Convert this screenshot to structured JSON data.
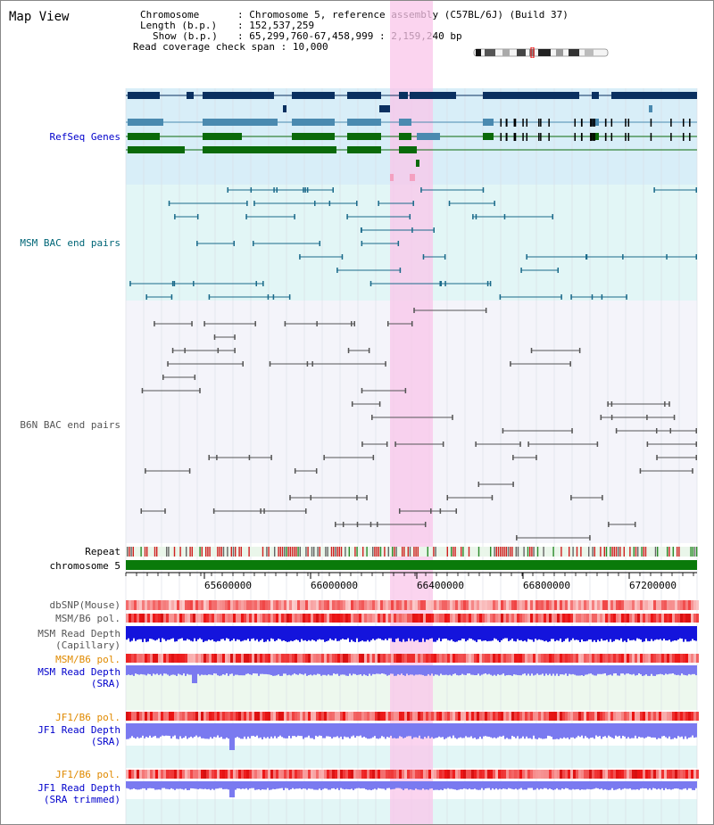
{
  "header": {
    "title": "Map View",
    "chromosome_key": "Chromosome",
    "chromosome_value": "Chromosome 5, reference assembly (C57BL/6J) (Build 37)",
    "length_key": "Length (b.p.)",
    "length_value": "152,537,259",
    "show_key": "Show (b.p.)",
    "show_value": "65,299,760-67,458,999 : 2,159,240 bp",
    "coverage_key": "Read coverage check span",
    "coverage_value": "10,000"
  },
  "tracks": {
    "refseq": "RefSeq Genes",
    "msm_bac": "MSM BAC end pairs",
    "b6n_bac": "B6N BAC end pairs",
    "repeat": "Repeat",
    "chromosome": "chromosome 5",
    "dbsnp": "dbSNP(Mouse)",
    "msm_b6_pol": "MSM/B6 pol.",
    "msm_depth_cap_1": "MSM Read Depth",
    "msm_depth_cap_2": "(Capillary)",
    "msm_b6_pol_2": "MSM/B6 pol.",
    "msm_depth_sra_1": "MSM Read Depth",
    "msm_depth_sra_2": "(SRA)",
    "jf1_b6_pol": "JF1/B6 pol.",
    "jf1_depth_1": "JF1 Read Depth",
    "jf1_depth_2": "(SRA)",
    "jf1_b6_pol_2": "JF1/B6 pol.",
    "jf1_depth_trim_1": "JF1 Read Depth",
    "jf1_depth_trim_2": "(SRA trimmed)"
  },
  "axis": {
    "ticks": [
      "65600000",
      "66000000",
      "66400000",
      "66800000",
      "67200000"
    ]
  },
  "colors": {
    "refseq_bg": "#d8eef8",
    "bac_bg": "#e4f7f7",
    "highlight": "#f9d8f0",
    "navy": "#0a3060",
    "steel": "#4a8ab0",
    "green": "#0a6a0a",
    "teal_line": "#1a6a8a",
    "gray_line": "#555555",
    "chrom_green": "#0a7a0a",
    "depth_blue": "#1414dc",
    "depth_light": "#7a7af0"
  }
}
